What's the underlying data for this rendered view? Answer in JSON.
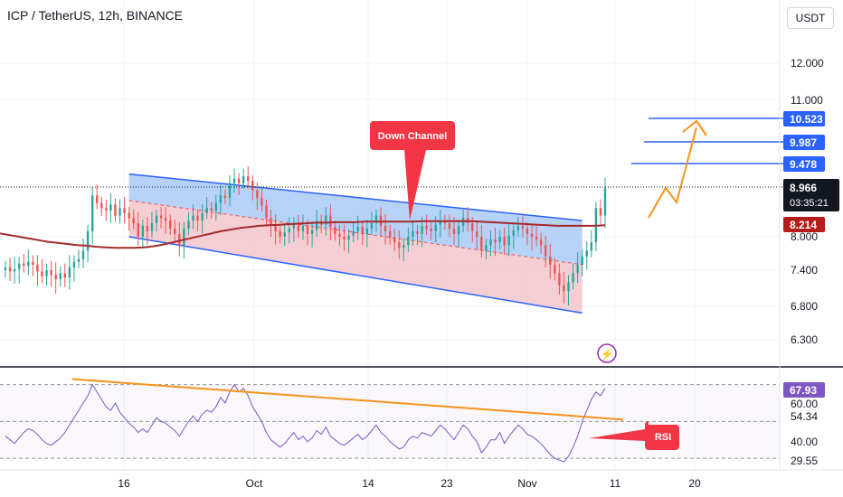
{
  "header": {
    "title": "ICP / TetherUS, 12h, BINANCE",
    "currency": "USDT"
  },
  "colors": {
    "up": "#26a69a",
    "down": "#ef5350",
    "ma": "#a52a2a",
    "channel": "#2962ff",
    "channel_upper_fill": "#9fc3f5",
    "channel_lower_fill": "#f3c2c9",
    "arrow": "#f7931a",
    "callout": "#f23645",
    "rsi": "#7e57c2",
    "rsi_trend": "#f7931a",
    "current_bg": "#131722",
    "ma_bg": "#b71c1c",
    "level_bg": "#2962ff",
    "rsi_bg": "#7e57c2"
  },
  "price_axis": {
    "ticks": [
      "12.000",
      "11.000",
      "8.000",
      "7.400",
      "6.800",
      "6.300"
    ]
  },
  "labels": {
    "current_price": "8.966",
    "countdown": "03:35:21",
    "ma_value": "8.214",
    "levels": [
      "10.523",
      "9.987",
      "9.478"
    ],
    "down_channel": "Down Channel",
    "rsi_callout": "RSI",
    "lightning_icon": "⚡"
  },
  "rsi_axis": {
    "ticks": [
      "60.00",
      "54.34",
      "40.00",
      "29.55"
    ],
    "current": "67.93"
  },
  "x_axis": {
    "ticks": [
      "16",
      "Oct",
      "14",
      "23",
      "Nov",
      "11",
      "20"
    ]
  },
  "chart_data": {
    "type": "candlestick",
    "symbol": "ICP / TetherUS",
    "interval": "12h",
    "exchange": "BINANCE",
    "price_range": [
      6.0,
      13.0
    ],
    "close_series": [
      7.45,
      7.38,
      7.42,
      7.52,
      7.48,
      7.55,
      7.5,
      7.38,
      7.3,
      7.4,
      7.32,
      7.25,
      7.35,
      7.28,
      7.45,
      7.55,
      7.6,
      7.75,
      8.1,
      8.8,
      8.65,
      8.55,
      8.5,
      8.62,
      8.4,
      8.55,
      8.45,
      8.35,
      8.25,
      8.0,
      8.2,
      8.1,
      8.25,
      8.4,
      8.35,
      8.3,
      8.15,
      8.05,
      7.85,
      8.15,
      8.3,
      8.4,
      8.3,
      8.45,
      8.55,
      8.5,
      8.65,
      8.8,
      8.75,
      9.05,
      9.15,
      9.05,
      9.2,
      9.1,
      8.9,
      8.75,
      8.6,
      8.35,
      8.2,
      8.1,
      8.0,
      8.08,
      8.15,
      8.25,
      8.1,
      8.2,
      8.05,
      8.12,
      8.3,
      8.22,
      8.4,
      8.18,
      8.05,
      8.0,
      7.95,
      8.02,
      8.1,
      8.18,
      8.05,
      8.15,
      8.25,
      8.4,
      8.2,
      8.1,
      7.98,
      7.9,
      7.8,
      7.85,
      8.0,
      8.1,
      8.05,
      8.2,
      8.15,
      8.1,
      8.22,
      8.3,
      8.25,
      8.15,
      8.05,
      8.2,
      8.35,
      8.25,
      8.1,
      8.0,
      7.75,
      7.85,
      7.95,
      7.9,
      8.0,
      7.85,
      8.02,
      8.12,
      8.2,
      8.15,
      8.05,
      8.0,
      7.95,
      7.85,
      7.65,
      7.5,
      7.35,
      7.15,
      7.05,
      7.2,
      7.35,
      7.5,
      7.65,
      7.75,
      7.9,
      8.55,
      8.4,
      8.95
    ],
    "ma_series": [
      8.06,
      8.03,
      8.0,
      7.97,
      7.94,
      7.91,
      7.89,
      7.87,
      7.85,
      7.84,
      7.82,
      7.81,
      7.8,
      7.8,
      7.8,
      7.81,
      7.83,
      7.86,
      7.9,
      7.94,
      7.98,
      8.02,
      8.06,
      8.1,
      8.13,
      8.16,
      8.18,
      8.2,
      8.21,
      8.22,
      8.23,
      8.24,
      8.25,
      8.26,
      8.26,
      8.27,
      8.27,
      8.27,
      8.28,
      8.28,
      8.28,
      8.28,
      8.28,
      8.28,
      8.29,
      8.29,
      8.29,
      8.29,
      8.29,
      8.29,
      8.28,
      8.27,
      8.26,
      8.25,
      8.24,
      8.23,
      8.22,
      8.21,
      8.2,
      8.2,
      8.2,
      8.2,
      8.2,
      8.21
    ],
    "channel": {
      "upper": {
        "start": [
          27,
          9.25
        ],
        "end": [
          126,
          8.3
        ]
      },
      "middle": {
        "start": [
          27,
          8.7
        ],
        "end": [
          126,
          7.5
        ]
      },
      "lower": {
        "start": [
          27,
          8.0
        ],
        "end": [
          126,
          6.7
        ]
      }
    },
    "horizontal_levels": [
      10.523,
      9.987,
      9.478
    ],
    "projection_path": [
      [
        8.3,
        0
      ],
      [
        8.9,
        1
      ],
      [
        8.6,
        2
      ],
      [
        9.8,
        3
      ],
      [
        10.52,
        4
      ]
    ],
    "rsi": {
      "range": [
        20,
        80
      ],
      "current": 67.93,
      "levels": [
        70,
        50,
        30
      ],
      "series": [
        42,
        40,
        38,
        41,
        44,
        46,
        45,
        43,
        40,
        38,
        37,
        39,
        41,
        44,
        48,
        52,
        56,
        60,
        64,
        70,
        66,
        62,
        58,
        56,
        60,
        55,
        52,
        49,
        47,
        44,
        46,
        44,
        48,
        52,
        50,
        49,
        47,
        45,
        42,
        46,
        50,
        53,
        50,
        54,
        56,
        55,
        58,
        63,
        60,
        66,
        70,
        66,
        68,
        64,
        58,
        54,
        50,
        44,
        40,
        38,
        36,
        38,
        41,
        44,
        40,
        42,
        39,
        41,
        45,
        43,
        47,
        42,
        40,
        38,
        37,
        39,
        41,
        43,
        40,
        42,
        45,
        48,
        44,
        42,
        39,
        37,
        35,
        36,
        40,
        42,
        41,
        44,
        43,
        42,
        45,
        48,
        46,
        43,
        40,
        44,
        48,
        46,
        42,
        39,
        33,
        36,
        40,
        40,
        44,
        38,
        42,
        45,
        48,
        46,
        43,
        42,
        40,
        38,
        35,
        32,
        30,
        29,
        28,
        31,
        36,
        42,
        50,
        56,
        62,
        66,
        64,
        68
      ]
    },
    "rsi_trendline": {
      "start": [
        18,
        73
      ],
      "end": [
        140,
        51
      ]
    }
  }
}
